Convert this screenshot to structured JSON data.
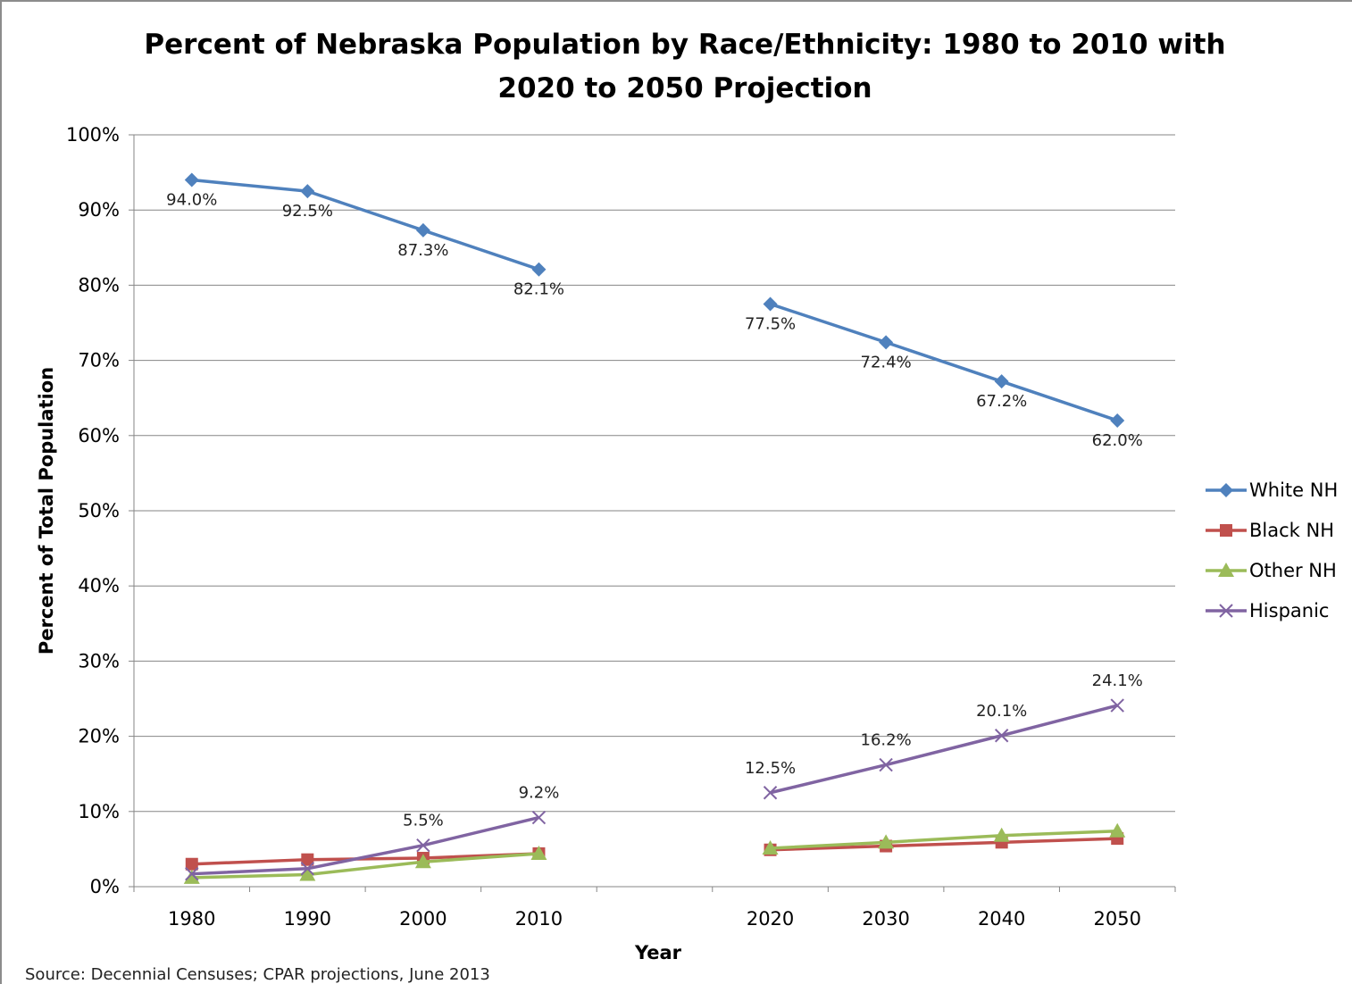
{
  "chart_data": {
    "type": "line",
    "title_lines": [
      "Percent of Nebraska Population by Race/Ethnicity: 1980 to 2010 with",
      "2020 to 2050 Projection"
    ],
    "xlabel": "Year",
    "ylabel": "Percent of Total Population",
    "categories": [
      "1980",
      "1990",
      "2000",
      "2010",
      "",
      "2020",
      "2030",
      "2040",
      "2050"
    ],
    "ylim": [
      0,
      100
    ],
    "yticks": [
      "0%",
      "10%",
      "20%",
      "30%",
      "40%",
      "50%",
      "60%",
      "70%",
      "80%",
      "90%",
      "100%"
    ],
    "grid": true,
    "legend_position": "right",
    "series": [
      {
        "name": "White NH",
        "color": "#4f81bd",
        "marker": "diamond",
        "values": [
          94.0,
          92.5,
          87.3,
          82.1,
          null,
          77.5,
          72.4,
          67.2,
          62.0
        ],
        "labels": [
          "94.0%",
          "92.5%",
          "87.3%",
          "82.1%",
          "",
          "77.5%",
          "72.4%",
          "67.2%",
          "62.0%"
        ],
        "label_pos": "below"
      },
      {
        "name": "Black NH",
        "color": "#c0504d",
        "marker": "square",
        "values": [
          3.0,
          3.6,
          3.8,
          4.4,
          null,
          4.9,
          5.4,
          5.9,
          6.4
        ],
        "labels": []
      },
      {
        "name": "Other NH",
        "color": "#9bbb59",
        "marker": "triangle",
        "values": [
          1.2,
          1.6,
          3.3,
          4.4,
          null,
          5.1,
          5.9,
          6.8,
          7.4
        ],
        "labels": []
      },
      {
        "name": "Hispanic",
        "color": "#8064a2",
        "marker": "x",
        "values": [
          1.7,
          2.4,
          5.5,
          9.2,
          null,
          12.5,
          16.2,
          20.1,
          24.1
        ],
        "labels": [
          "",
          "",
          "5.5%",
          "9.2%",
          "",
          "12.5%",
          "16.2%",
          "20.1%",
          "24.1%"
        ],
        "label_pos": "above"
      }
    ],
    "source": "Source: Decennial Censuses; CPAR projections, June 2013"
  }
}
